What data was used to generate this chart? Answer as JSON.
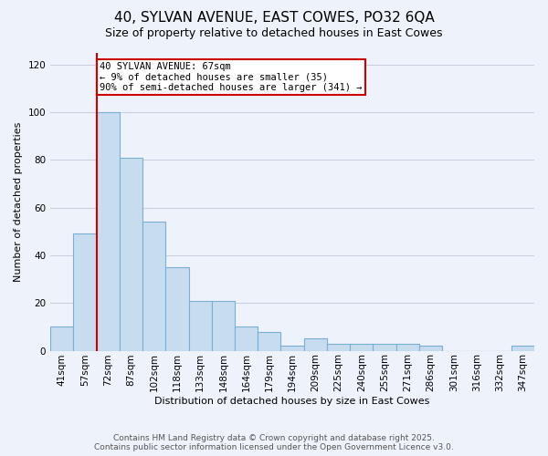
{
  "title": "40, SYLVAN AVENUE, EAST COWES, PO32 6QA",
  "subtitle": "Size of property relative to detached houses in East Cowes",
  "xlabel": "Distribution of detached houses by size in East Cowes",
  "ylabel": "Number of detached properties",
  "bin_labels": [
    "41sqm",
    "57sqm",
    "72sqm",
    "87sqm",
    "102sqm",
    "118sqm",
    "133sqm",
    "148sqm",
    "164sqm",
    "179sqm",
    "194sqm",
    "209sqm",
    "225sqm",
    "240sqm",
    "255sqm",
    "271sqm",
    "286sqm",
    "301sqm",
    "316sqm",
    "332sqm",
    "347sqm"
  ],
  "bar_heights": [
    10,
    49,
    100,
    81,
    54,
    35,
    21,
    21,
    10,
    8,
    2,
    5,
    3,
    3,
    3,
    3,
    2,
    0,
    0,
    0,
    2
  ],
  "bar_color": "#c8dcef",
  "bar_edge_color": "#7aafd4",
  "reference_line_index": 2,
  "annotation_text": "40 SYLVAN AVENUE: 67sqm\n← 9% of detached houses are smaller (35)\n90% of semi-detached houses are larger (341) →",
  "ylim": [
    0,
    125
  ],
  "yticks": [
    0,
    20,
    40,
    60,
    80,
    100,
    120
  ],
  "grid_color": "#c8d0e0",
  "background_color": "#eef2fb",
  "footer_line1": "Contains HM Land Registry data © Crown copyright and database right 2025.",
  "footer_line2": "Contains public sector information licensed under the Open Government Licence v3.0.",
  "annotation_box_color": "#ffffff",
  "annotation_box_edge": "#cc0000",
  "ref_line_color": "#cc0000",
  "title_fontsize": 11,
  "subtitle_fontsize": 9,
  "axis_label_fontsize": 8,
  "tick_fontsize": 7.5,
  "footer_fontsize": 6.5
}
